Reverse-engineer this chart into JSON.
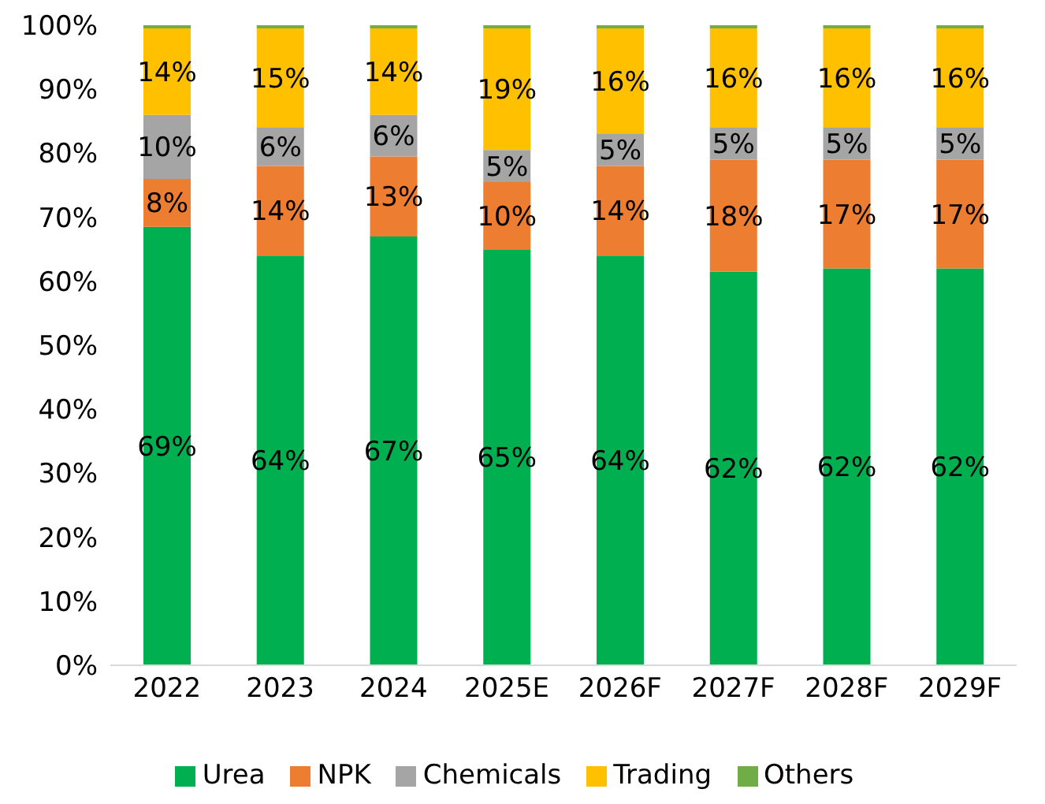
{
  "chart_data": {
    "type": "bar",
    "stacked": true,
    "categories": [
      "2022",
      "2023",
      "2024",
      "2025E",
      "2026F",
      "2027F",
      "2028F",
      "2029F"
    ],
    "series": [
      {
        "name": "Urea",
        "color": "#00b050",
        "values": [
          68.5,
          64,
          67,
          65,
          64,
          61.5,
          62,
          62
        ],
        "value_labels": [
          "69%",
          "64%",
          "67%",
          "65%",
          "64%",
          "62%",
          "62%",
          "62%"
        ]
      },
      {
        "name": "NPK",
        "color": "#ed7d31",
        "values": [
          7.5,
          14,
          12.5,
          10.5,
          14,
          17.5,
          17,
          17
        ],
        "value_labels": [
          "8%",
          "14%",
          "13%",
          "10%",
          "14%",
          "18%",
          "17%",
          "17%"
        ]
      },
      {
        "name": "Chemicals",
        "color": "#a5a5a5",
        "values": [
          10,
          6,
          6.5,
          5,
          5,
          5,
          5,
          5
        ],
        "value_labels": [
          "10%",
          "6%",
          "6%",
          "5%",
          "5%",
          "5%",
          "5%",
          "5%"
        ]
      },
      {
        "name": "Trading",
        "color": "#ffc000",
        "values": [
          13.5,
          15.5,
          13.5,
          19,
          16.5,
          15.5,
          15.5,
          15.5
        ],
        "value_labels": [
          "14%",
          "15%",
          "14%",
          "19%",
          "16%",
          "16%",
          "16%",
          "16%"
        ]
      },
      {
        "name": "Others",
        "color": "#70ad47",
        "values": [
          0.5,
          0.5,
          0.5,
          0.5,
          0.5,
          0.5,
          0.5,
          0.5
        ]
      }
    ],
    "ylim": [
      0,
      100
    ],
    "yticks": [
      {
        "value": 0,
        "label": "0%"
      },
      {
        "value": 10,
        "label": "10%"
      },
      {
        "value": 20,
        "label": "20%"
      },
      {
        "value": 30,
        "label": "30%"
      },
      {
        "value": 40,
        "label": "40%"
      },
      {
        "value": 50,
        "label": "50%"
      },
      {
        "value": 60,
        "label": "60%"
      },
      {
        "value": 70,
        "label": "70%"
      },
      {
        "value": 80,
        "label": "80%"
      },
      {
        "value": 90,
        "label": "90%"
      },
      {
        "value": 100,
        "label": "100%"
      }
    ],
    "legend": "bottom"
  }
}
